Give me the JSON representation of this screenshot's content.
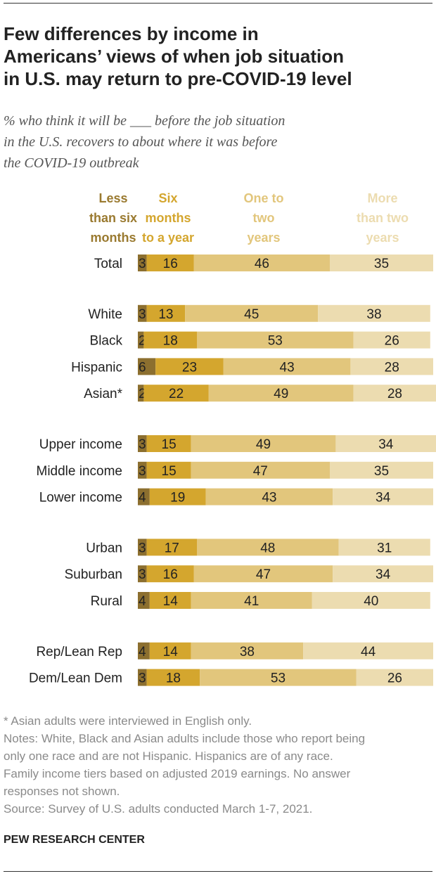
{
  "title_lines": [
    "Few differences by income in",
    "Americans’ views of when job situation",
    "in U.S. may return to pre-COVID-19 level"
  ],
  "subtitle_lines": [
    "% who think it will be ___ before the job situation",
    "in the U.S. recovers to about where it was before",
    "the COVID-19 outbreak"
  ],
  "colors": {
    "less_than_six": "#8c6f2f",
    "six_to_year": "#d4a62e",
    "one_to_two": "#e2c67c",
    "more_than_two": "#ecdcb0",
    "label_text": "#222222"
  },
  "chart_data": {
    "type": "bar",
    "orientation": "horizontal",
    "stacked": true,
    "legend_position": "top",
    "xlim": [
      0,
      100
    ],
    "series": [
      {
        "key": "less_than_six",
        "name_lines": [
          "Less",
          "than six",
          "months"
        ]
      },
      {
        "key": "six_to_year",
        "name_lines": [
          "Six",
          "months",
          "to a year"
        ]
      },
      {
        "key": "one_to_two",
        "name_lines": [
          "One to",
          "two",
          "years"
        ]
      },
      {
        "key": "more_than_two",
        "name_lines": [
          "More",
          "than two",
          "years"
        ]
      }
    ],
    "rows": [
      {
        "label": "Total",
        "values": [
          3,
          16,
          46,
          35
        ],
        "group": 0
      },
      {
        "label": "White",
        "values": [
          3,
          13,
          45,
          38
        ],
        "group": 1
      },
      {
        "label": "Black",
        "values": [
          2,
          18,
          53,
          26
        ],
        "group": 1
      },
      {
        "label": "Hispanic",
        "values": [
          6,
          23,
          43,
          28
        ],
        "group": 1
      },
      {
        "label": "Asian*",
        "values": [
          2,
          22,
          49,
          28
        ],
        "group": 1
      },
      {
        "label": "Upper income",
        "values": [
          3,
          15,
          49,
          34
        ],
        "group": 2
      },
      {
        "label": "Middle income",
        "values": [
          3,
          15,
          47,
          35
        ],
        "group": 2
      },
      {
        "label": "Lower income",
        "values": [
          4,
          19,
          43,
          34
        ],
        "group": 2
      },
      {
        "label": "Urban",
        "values": [
          3,
          17,
          48,
          31
        ],
        "group": 3
      },
      {
        "label": "Suburban",
        "values": [
          3,
          16,
          47,
          34
        ],
        "group": 3
      },
      {
        "label": "Rural",
        "values": [
          4,
          14,
          41,
          40
        ],
        "group": 3
      },
      {
        "label": "Rep/Lean Rep",
        "values": [
          4,
          14,
          38,
          44
        ],
        "group": 4
      },
      {
        "label": "Dem/Lean Dem",
        "values": [
          3,
          18,
          53,
          26
        ],
        "group": 4
      }
    ]
  },
  "notes_lines": [
    "* Asian adults were interviewed in English only.",
    "Notes: White, Black and Asian adults include those who report being",
    "only one race and are not Hispanic. Hispanics are of any race.",
    "Family income tiers based on adjusted 2019 earnings. No answer",
    "responses not shown.",
    "Source: Survey of U.S. adults conducted March 1-7, 2021."
  ],
  "brand": "PEW RESEARCH CENTER"
}
